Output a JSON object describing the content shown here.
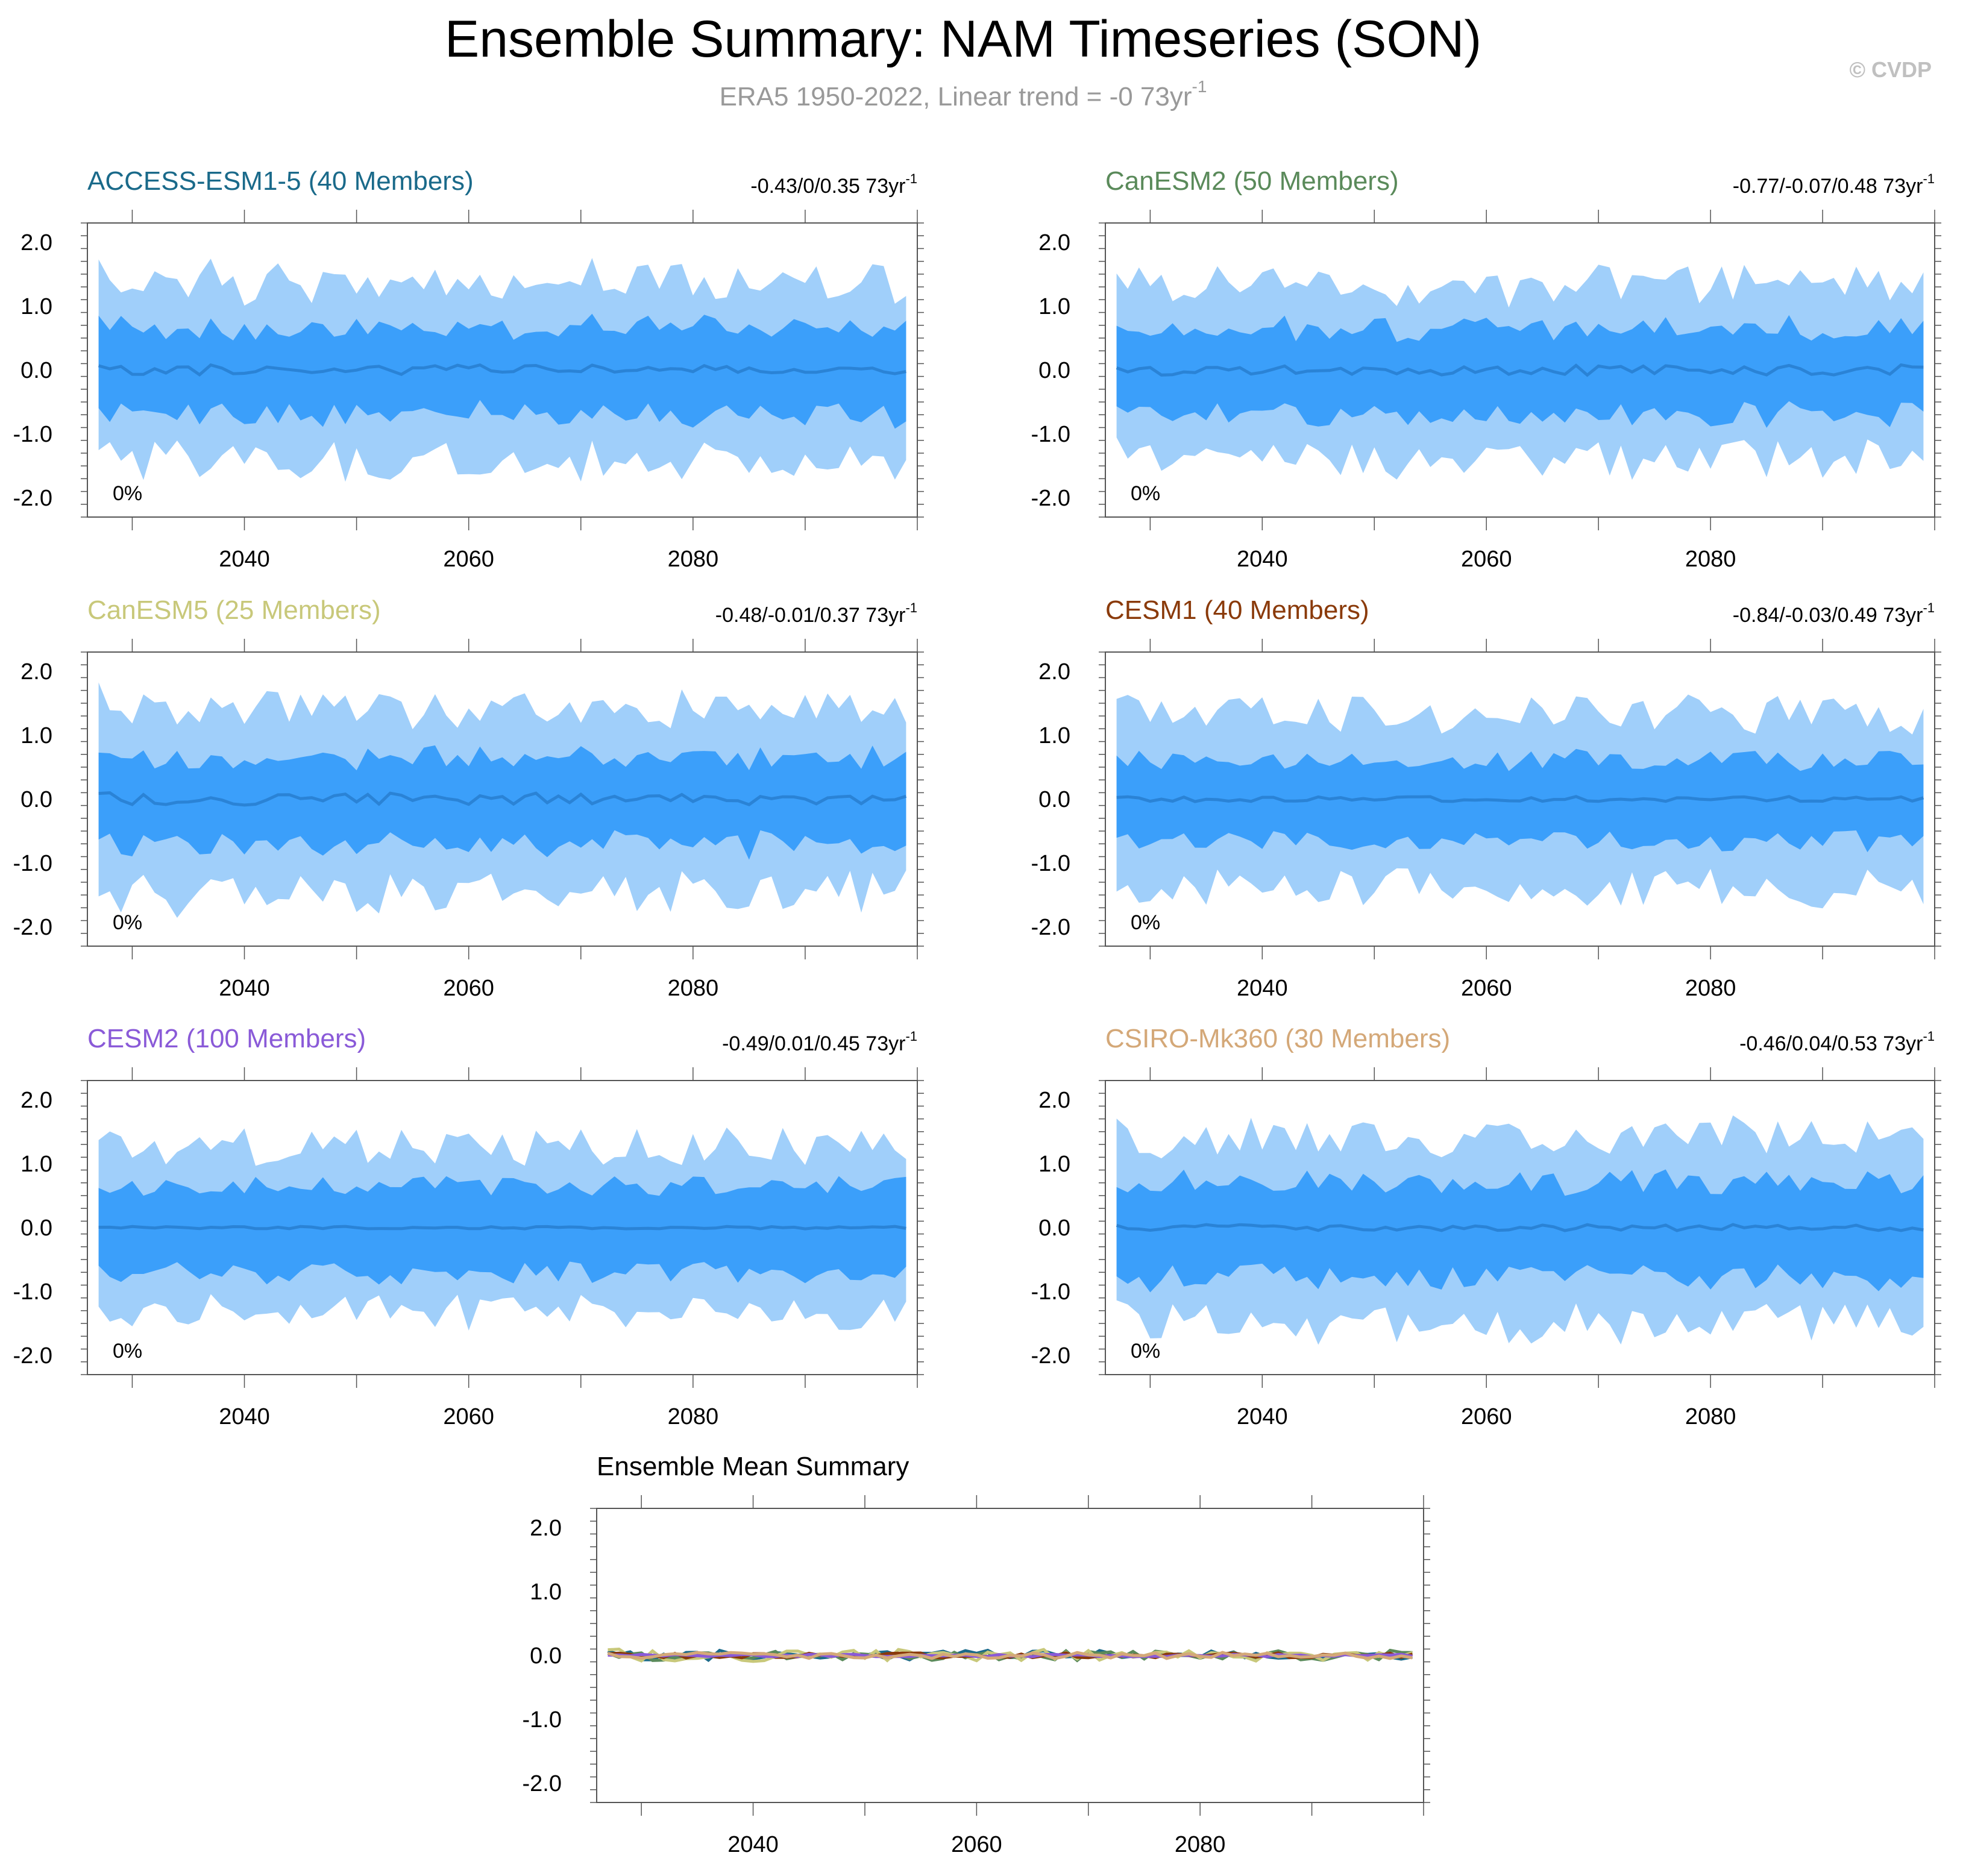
{
  "header": {
    "title": "Ensemble Summary: NAM Timeseries (SON)",
    "subtitle_main": "ERA5 1950-2022, Linear trend = -0 73yr",
    "subtitle_sup": "-1",
    "watermark": "© CVDP"
  },
  "colors": {
    "outer_band": "#a0cffa",
    "inner_band": "#3b9ffa",
    "mean_line": "#2a83d6",
    "frame": "#555555",
    "subtitle": "#999999",
    "watermark": "#c0c0c0"
  },
  "chart_data": [
    {
      "type": "area",
      "title": "ACCESS-ESM1-5 (40 Members)",
      "title_color": "#1a6a8a",
      "trend": "-0.43/0/0.35 73yr",
      "trend_sup": "-1",
      "pct_label": "0%",
      "xlim": [
        2026,
        2100
      ],
      "ylim": [
        -2.3,
        2.3
      ],
      "xticks": [
        2040,
        2060,
        2080
      ],
      "xticklabels": [
        "2040",
        "2060",
        "2080"
      ],
      "yticks": [
        2,
        1,
        0,
        -1,
        -2
      ],
      "yticklabels": [
        "2.0",
        "1.0",
        "0.0",
        "-1.0",
        "-2.0"
      ],
      "x": [
        2027,
        2099
      ],
      "outer_amp": 1.4,
      "inner_amp": 0.65,
      "mean_amp": 0.08,
      "seed": 11
    },
    {
      "type": "area",
      "title": "CanESM2 (50 Members)",
      "title_color": "#5a8a5a",
      "trend": "-0.77/-0.07/0.48 73yr",
      "trend_sup": "-1",
      "pct_label": "0%",
      "xlim": [
        2026,
        2100
      ],
      "ylim": [
        -2.3,
        2.3
      ],
      "xticks": [
        2040,
        2060,
        2080
      ],
      "xticklabels": [
        "2040",
        "2060",
        "2080"
      ],
      "yticks": [
        2,
        1,
        0,
        -1,
        -2
      ],
      "yticklabels": [
        "2.0",
        "1.0",
        "0.0",
        "-1.0",
        "-2.0"
      ],
      "x": [
        2027,
        2099
      ],
      "outer_amp": 1.35,
      "inner_amp": 0.65,
      "mean_amp": 0.08,
      "seed": 23
    },
    {
      "type": "area",
      "title": "CanESM5 (25 Members)",
      "title_color": "#c8c87a",
      "trend": "-0.48/-0.01/0.37 73yr",
      "trend_sup": "-1",
      "pct_label": "0%",
      "xlim": [
        2026,
        2100
      ],
      "ylim": [
        -2.3,
        2.3
      ],
      "xticks": [
        2040,
        2060,
        2080
      ],
      "xticklabels": [
        "2040",
        "2060",
        "2080"
      ],
      "yticks": [
        2,
        1,
        0,
        -1,
        -2
      ],
      "yticklabels": [
        "2.0",
        "1.0",
        "0.0",
        "-1.0",
        "-2.0"
      ],
      "x": [
        2027,
        2099
      ],
      "outer_amp": 1.45,
      "inner_amp": 0.65,
      "mean_amp": 0.1,
      "seed": 37
    },
    {
      "type": "area",
      "title": "CESM1 (40 Members)",
      "title_color": "#8a3a0a",
      "trend": "-0.84/-0.03/0.49 73yr",
      "trend_sup": "-1",
      "pct_label": "0%",
      "xlim": [
        2026,
        2100
      ],
      "ylim": [
        -2.3,
        2.3
      ],
      "xticks": [
        2040,
        2060,
        2080
      ],
      "xticklabels": [
        "2040",
        "2060",
        "2080"
      ],
      "yticks": [
        2,
        1,
        0,
        -1,
        -2
      ],
      "yticklabels": [
        "2.0",
        "1.0",
        "0.0",
        "-1.0",
        "-2.0"
      ],
      "x": [
        2027,
        2099
      ],
      "outer_amp": 1.35,
      "inner_amp": 0.62,
      "mean_amp": 0.04,
      "seed": 41
    },
    {
      "type": "area",
      "title": "CESM2 (100 Members)",
      "title_color": "#8a5ad8",
      "trend": "-0.49/0.01/0.45 73yr",
      "trend_sup": "-1",
      "pct_label": "0%",
      "xlim": [
        2026,
        2100
      ],
      "ylim": [
        -2.3,
        2.3
      ],
      "xticks": [
        2040,
        2060,
        2080
      ],
      "xticklabels": [
        "2040",
        "2060",
        "2080"
      ],
      "yticks": [
        2,
        1,
        0,
        -1,
        -2
      ],
      "yticklabels": [
        "2.0",
        "1.0",
        "0.0",
        "-1.0",
        "-2.0"
      ],
      "x": [
        2027,
        2099
      ],
      "outer_amp": 1.3,
      "inner_amp": 0.65,
      "mean_amp": 0.02,
      "seed": 53
    },
    {
      "type": "area",
      "title": "CSIRO-Mk360 (30 Members)",
      "title_color": "#d4a878",
      "trend": "-0.46/0.04/0.53 73yr",
      "trend_sup": "-1",
      "pct_label": "0%",
      "xlim": [
        2026,
        2100
      ],
      "ylim": [
        -2.3,
        2.3
      ],
      "xticks": [
        2040,
        2060,
        2080
      ],
      "xticklabels": [
        "2040",
        "2060",
        "2080"
      ],
      "yticks": [
        2,
        1,
        0,
        -1,
        -2
      ],
      "yticklabels": [
        "2.0",
        "1.0",
        "0.0",
        "-1.0",
        "-2.0"
      ],
      "x": [
        2027,
        2099
      ],
      "outer_amp": 1.45,
      "inner_amp": 0.72,
      "mean_amp": 0.05,
      "seed": 67
    },
    {
      "type": "line",
      "title": "Ensemble Mean Summary",
      "title_color": "#000000",
      "xlim": [
        2026,
        2100
      ],
      "ylim": [
        -2.3,
        2.3
      ],
      "xticks": [
        2040,
        2060,
        2080
      ],
      "xticklabels": [
        "2040",
        "2060",
        "2080"
      ],
      "yticks": [
        2,
        1,
        0,
        -1,
        -2
      ],
      "yticklabels": [
        "2.0",
        "1.0",
        "0.0",
        "-1.0",
        "-2.0"
      ],
      "x": [
        2027,
        2099
      ],
      "series": [
        {
          "color": "#1a6a8a",
          "amp": 0.08,
          "seed": 11
        },
        {
          "color": "#5a8a5a",
          "amp": 0.08,
          "seed": 23
        },
        {
          "color": "#c8c87a",
          "amp": 0.1,
          "seed": 37
        },
        {
          "color": "#8a3a0a",
          "amp": 0.04,
          "seed": 41
        },
        {
          "color": "#8a5ad8",
          "amp": 0.02,
          "seed": 53
        },
        {
          "color": "#d4a878",
          "amp": 0.05,
          "seed": 67
        }
      ]
    }
  ]
}
